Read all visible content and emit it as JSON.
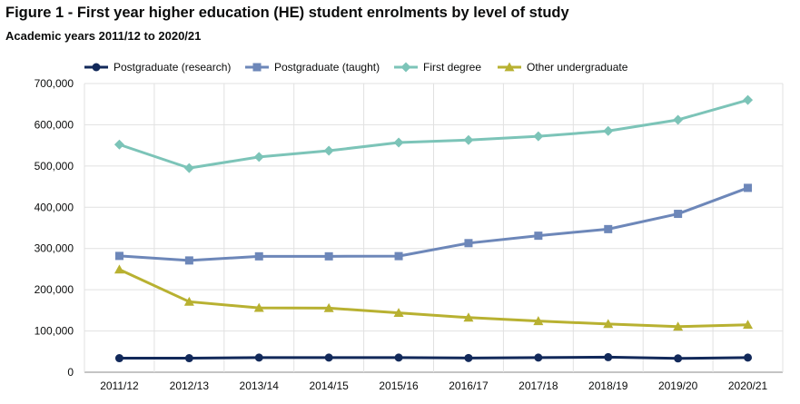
{
  "chart_data": {
    "type": "line",
    "title": "Figure 1 - First year higher education (HE) student enrolments by level of study",
    "subtitle": "Academic years 2011/12 to 2020/21",
    "xlabel": "",
    "ylabel": "",
    "ylim": [
      0,
      700000
    ],
    "yticks": [
      0,
      100000,
      200000,
      300000,
      400000,
      500000,
      600000,
      700000
    ],
    "ytick_labels": [
      "0",
      "100,000",
      "200,000",
      "300,000",
      "400,000",
      "500,000",
      "600,000",
      "700,000"
    ],
    "grid": true,
    "legend_position": "top",
    "categories": [
      "2011/12",
      "2012/13",
      "2013/14",
      "2014/15",
      "2015/16",
      "2016/17",
      "2017/18",
      "2018/19",
      "2019/20",
      "2020/21"
    ],
    "series": [
      {
        "name": "Postgraduate (research)",
        "color": "#12295a",
        "marker": "circle",
        "values": [
          34000,
          34000,
          35500,
          35500,
          35500,
          34500,
          35500,
          36500,
          33500,
          35500
        ]
      },
      {
        "name": "Postgraduate (taught)",
        "color": "#6d87b9",
        "marker": "square",
        "values": [
          282000,
          271000,
          281000,
          281000,
          281500,
          313000,
          331000,
          347000,
          384000,
          447000
        ]
      },
      {
        "name": "First degree",
        "color": "#7cc4b8",
        "marker": "diamond",
        "values": [
          552000,
          495000,
          522000,
          537000,
          557000,
          563000,
          572000,
          585000,
          612000,
          660000
        ]
      },
      {
        "name": "Other undergraduate",
        "color": "#b8b131",
        "marker": "triangle",
        "values": [
          249000,
          171000,
          156000,
          155500,
          144000,
          132500,
          124000,
          117000,
          110500,
          115000
        ]
      }
    ]
  }
}
